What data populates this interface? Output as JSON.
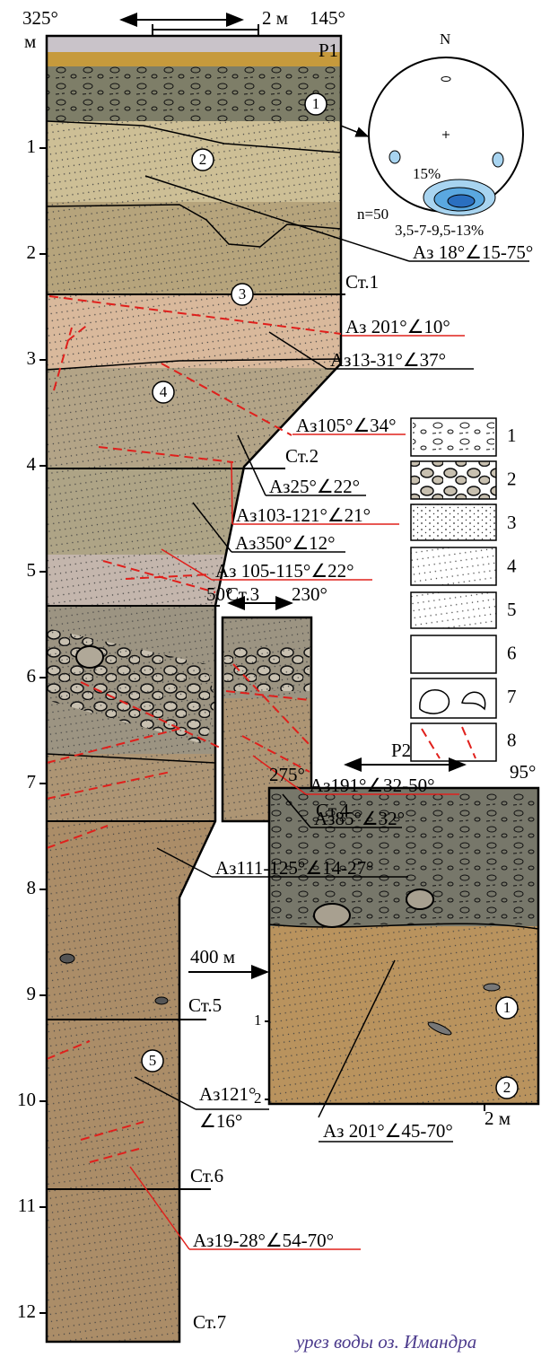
{
  "section_p1": {
    "left_azimuth": "325°",
    "right_azimuth": "145°",
    "scale": "2 м",
    "name": "P1",
    "depth_unit": "м",
    "depth_labels": [
      "1",
      "2",
      "3",
      "4",
      "5",
      "6",
      "7",
      "8",
      "9",
      "10",
      "11",
      "12"
    ],
    "units": [
      "1",
      "2",
      "3",
      "4",
      "5"
    ],
    "stations": [
      "Ст.1",
      "Ст.2",
      "Ст.3",
      "Ст.4",
      "Ст.5",
      "Ст.6",
      "Ст.7"
    ],
    "measurements": [
      "Аз 18°∠15-75°",
      "Аз 201°∠10°",
      "Аз13-31°∠37°",
      "Аз105°∠34°",
      "Аз25°∠22°",
      "Аз103-121°∠21°",
      "Аз350°∠12°",
      "Аз 105-115°∠22°",
      "Аз191°∠32-50°",
      "Аз85°∠32°",
      "Аз111-125°∠14-27°",
      [
        "Аз121°",
        "∠16°"
      ],
      "Аз19-28°∠54-70°"
    ]
  },
  "stereonet": {
    "north": "N",
    "max": "15%",
    "n": "n=50",
    "contours": "3,5-7-9,5-13%"
  },
  "inset": {
    "left_azimuth": "50°",
    "right_azimuth": "230°"
  },
  "section_p2": {
    "left_azimuth": "275°",
    "right_azimuth": "95°",
    "name": "P2",
    "distance": "400 м",
    "depth_labels": [
      "1",
      "2"
    ],
    "units": [
      "1",
      "2"
    ],
    "scale": "2 м",
    "measurement": "Аз 201°∠45-70°"
  },
  "legend": [
    "1",
    "2",
    "3",
    "4",
    "5",
    "6",
    "7",
    "8"
  ],
  "caption": "урез воды оз. Имандра"
}
